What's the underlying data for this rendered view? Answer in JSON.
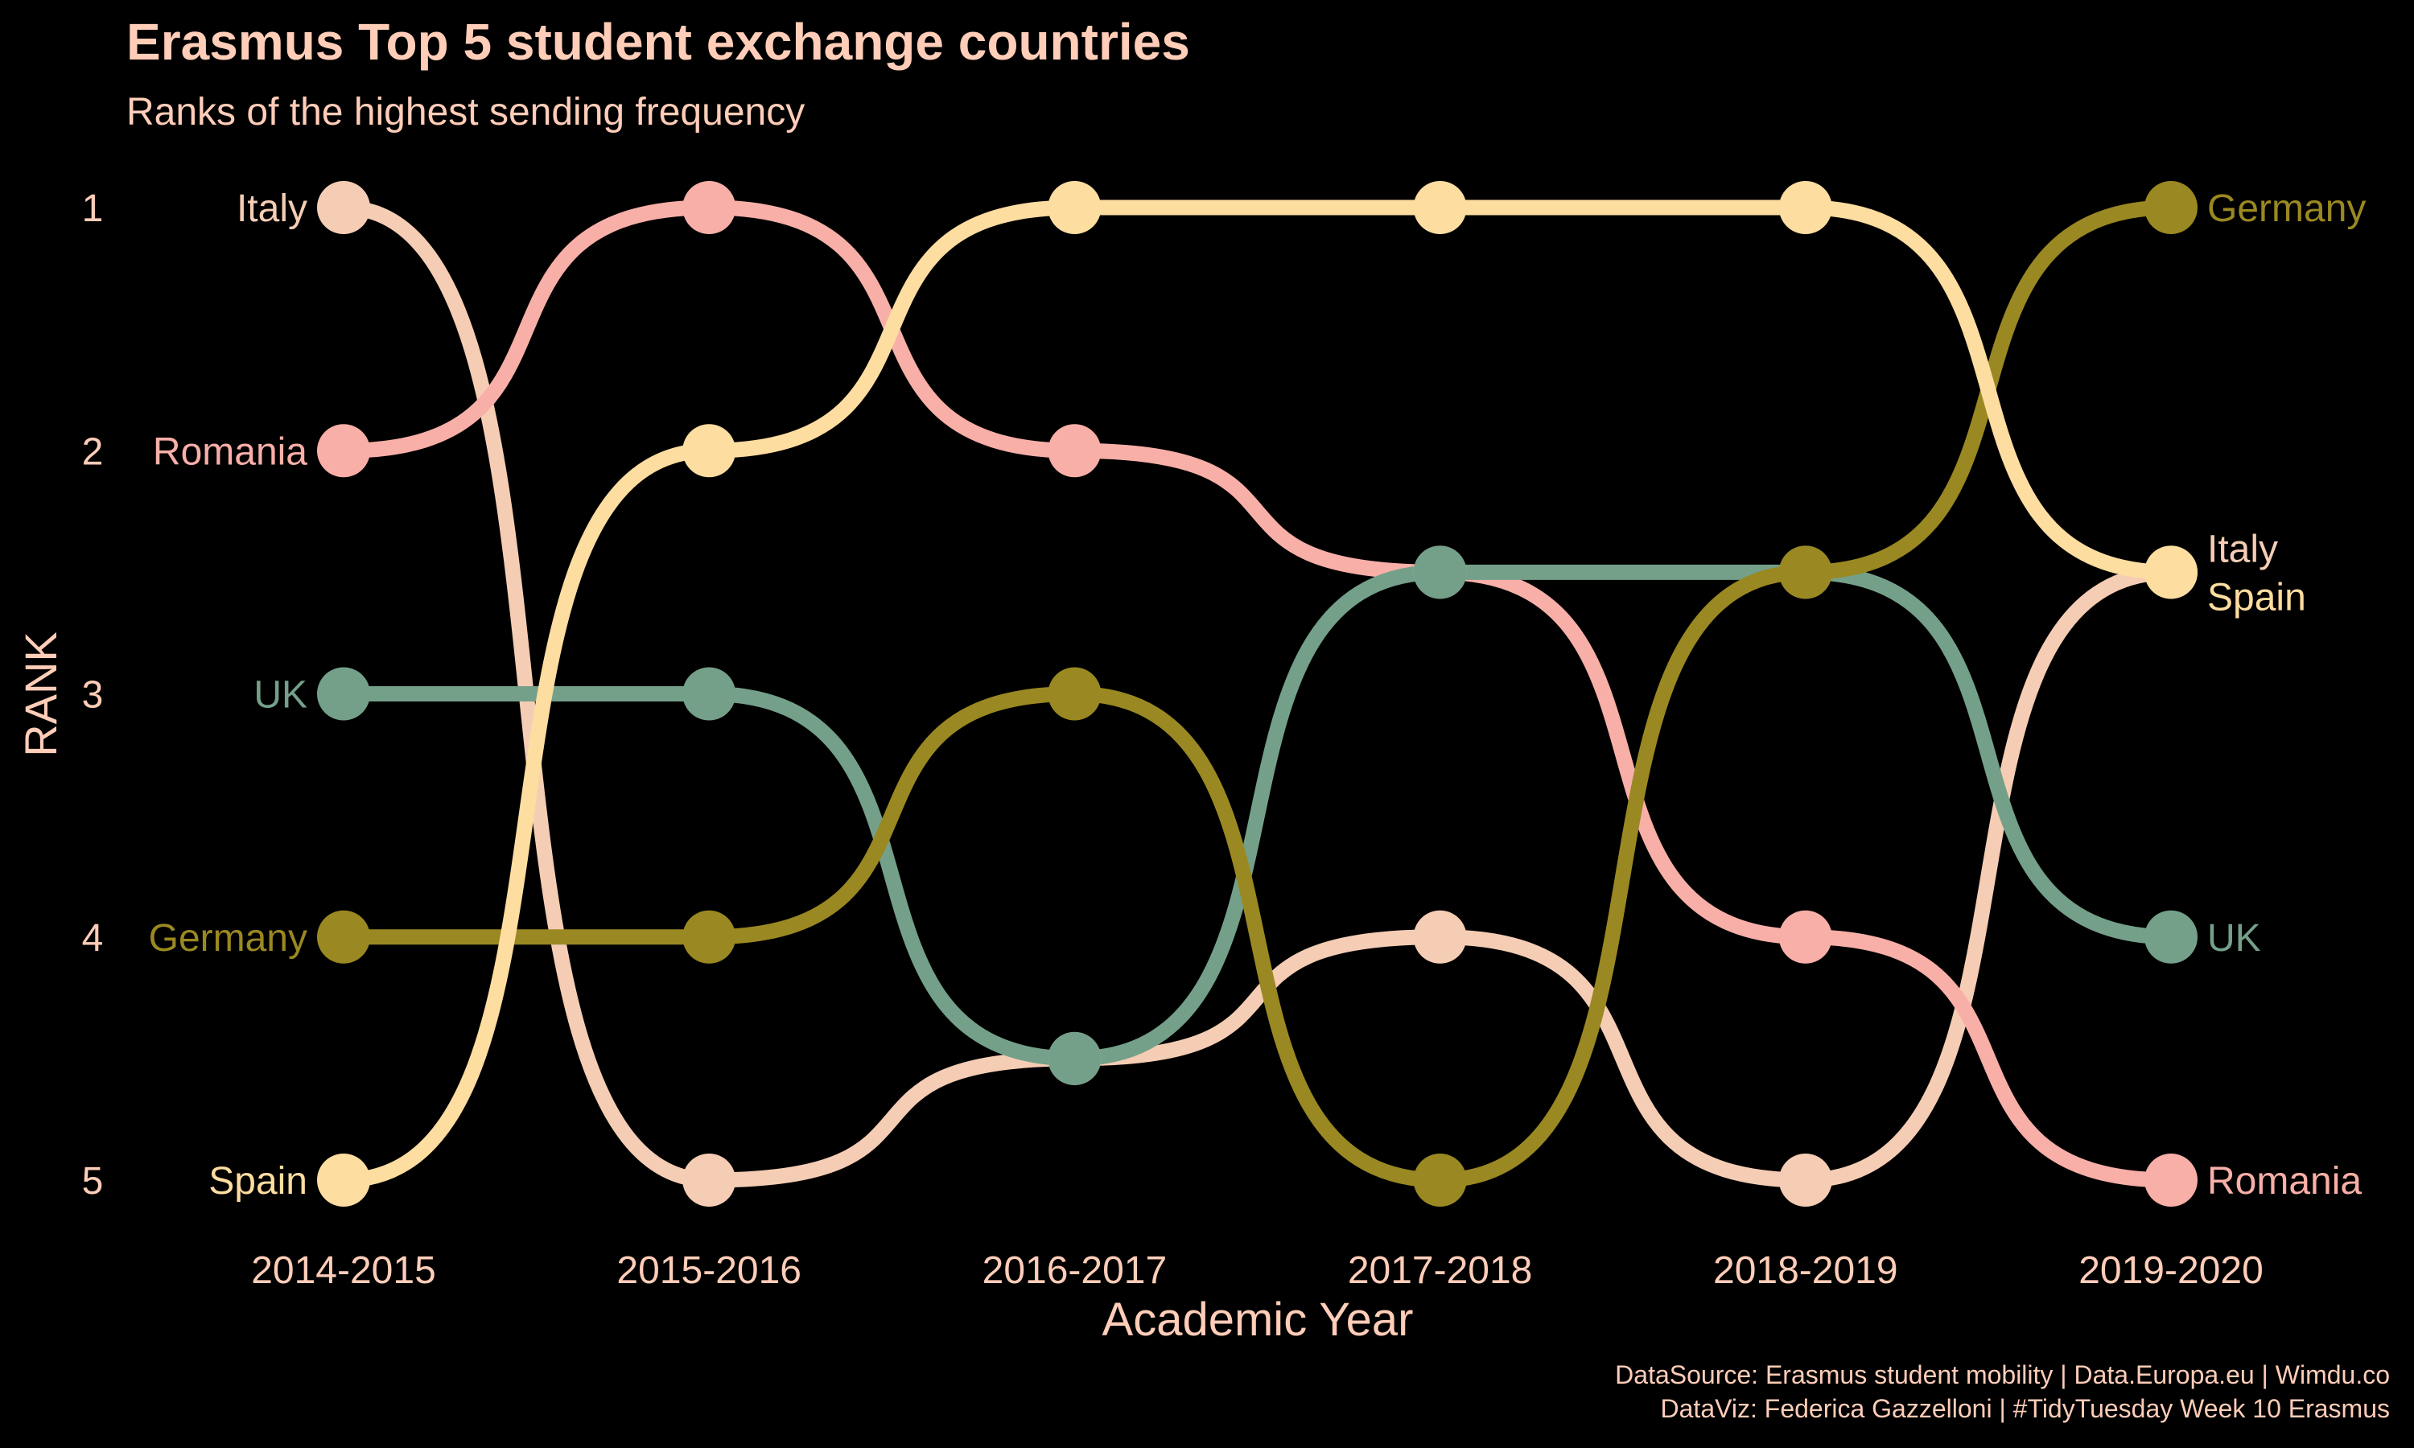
{
  "chart_data": {
    "type": "line",
    "subtype": "bump",
    "title": "Erasmus Top 5 student exchange countries",
    "subtitle": "Ranks of the highest sending frequency",
    "xlabel": "Academic Year",
    "ylabel": "RANK",
    "categories": [
      "2014-2015",
      "2015-2016",
      "2016-2017",
      "2017-2018",
      "2018-2019",
      "2019-2020"
    ],
    "y_ticks": [
      "1",
      "2",
      "3",
      "4",
      "5"
    ],
    "ylim": [
      5,
      1
    ],
    "grid": false,
    "series": [
      {
        "name": "Italy",
        "color": "#F5CDB4",
        "values": [
          1,
          5,
          4.5,
          4,
          5,
          2.5
        ]
      },
      {
        "name": "Romania",
        "color": "#F8AFA8",
        "values": [
          2,
          1,
          2,
          2.5,
          4,
          5
        ]
      },
      {
        "name": "UK",
        "color": "#74A089",
        "values": [
          3,
          3,
          4.5,
          2.5,
          2.5,
          4
        ]
      },
      {
        "name": "Germany",
        "color": "#9A8822",
        "values": [
          4,
          4,
          3,
          5,
          2.5,
          1
        ]
      },
      {
        "name": "Spain",
        "color": "#FDDDA0",
        "values": [
          5,
          2,
          1,
          1,
          1,
          2.5
        ]
      }
    ],
    "caption": [
      "DataSource: Erasmus student mobility | Data.Europa.eu | Wimdu.co",
      "DataViz: Federica Gazzelloni | #TidyTuesday Week 10 Erasmus"
    ],
    "text_color": "#FFCDB8",
    "background": "#000000"
  }
}
